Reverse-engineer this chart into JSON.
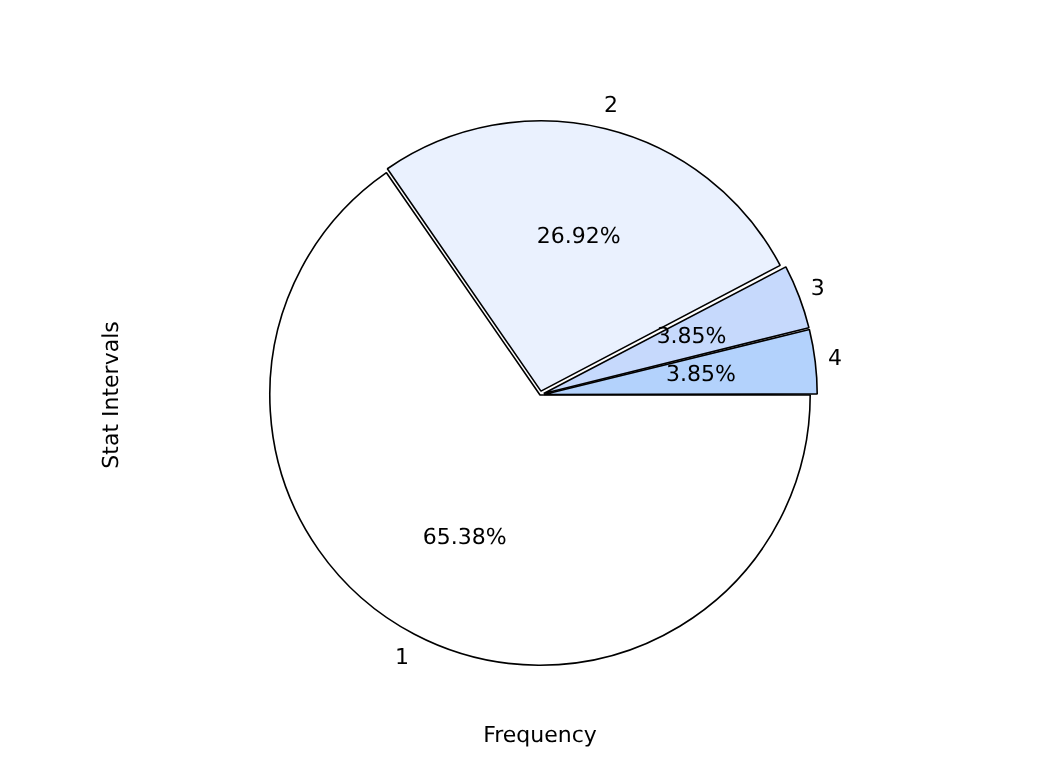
{
  "chart_data": {
    "type": "pie",
    "xlabel": "Frequency",
    "ylabel": "Stat Intervals",
    "categories": [
      "1",
      "2",
      "3",
      "4"
    ],
    "values": [
      65.38,
      26.92,
      3.85,
      3.85
    ],
    "colors": [
      "#ffffff",
      "#eaf1fe",
      "#c6d9fc",
      "#b3d2fc"
    ],
    "value_labels": [
      "65.38%",
      "26.92%",
      "3.85%",
      "3.85%"
    ],
    "legend": false
  }
}
